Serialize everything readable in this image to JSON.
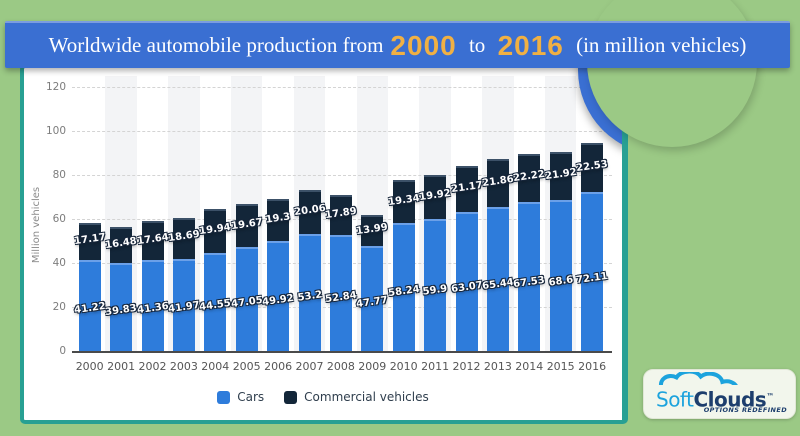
{
  "colors": {
    "background_green": "#9bc985",
    "banner_blue": "#3a6fd2",
    "accent_gold": "#f0b044",
    "card_border_teal": "#28a093",
    "cars_blue": "#2e7cdb",
    "commercial_navy": "#132639"
  },
  "header": {
    "prefix": "Worldwide automobile production from",
    "year_start": "2000",
    "connector": " to ",
    "year_end": "2016",
    "suffix": " (in million vehicles)"
  },
  "chart_data": {
    "type": "bar",
    "stacked": true,
    "title": "Worldwide automobile production from 2000 to 2016 (in million vehicles)",
    "categories": [
      "2000",
      "2001",
      "2002",
      "2003",
      "2004",
      "2005",
      "2006",
      "2007",
      "2008",
      "2009",
      "2010",
      "2011",
      "2012",
      "2013",
      "2014",
      "2015",
      "2016"
    ],
    "series": [
      {
        "name": "Cars",
        "color": "#2e7cdb",
        "values": [
          41.22,
          39.83,
          41.36,
          41.97,
          44.55,
          47.05,
          49.92,
          53.2,
          52.84,
          47.77,
          58.24,
          59.9,
          63.07,
          65.44,
          67.53,
          68.6,
          72.11
        ]
      },
      {
        "name": "Commercial vehicles",
        "color": "#132639",
        "values": [
          17.17,
          16.48,
          17.64,
          18.69,
          19.94,
          19.67,
          19.3,
          20.06,
          17.89,
          13.99,
          19.34,
          19.92,
          21.17,
          21.86,
          22.22,
          21.92,
          22.53
        ]
      }
    ],
    "xlabel": "",
    "ylabel": "Million vehicles",
    "ylim": [
      0,
      120
    ],
    "ytick_interval": 20,
    "grid": "dashed-horizontal",
    "legend_position": "bottom"
  },
  "legend": {
    "items": [
      {
        "label": "Cars",
        "color": "#2e7cdb"
      },
      {
        "label": "Commercial vehicles",
        "color": "#132639"
      }
    ]
  },
  "logo": {
    "brand_light": "Soft",
    "brand_bold": "Clouds",
    "trademark": "™",
    "tagline": "OPTIONS REDEFINED"
  }
}
